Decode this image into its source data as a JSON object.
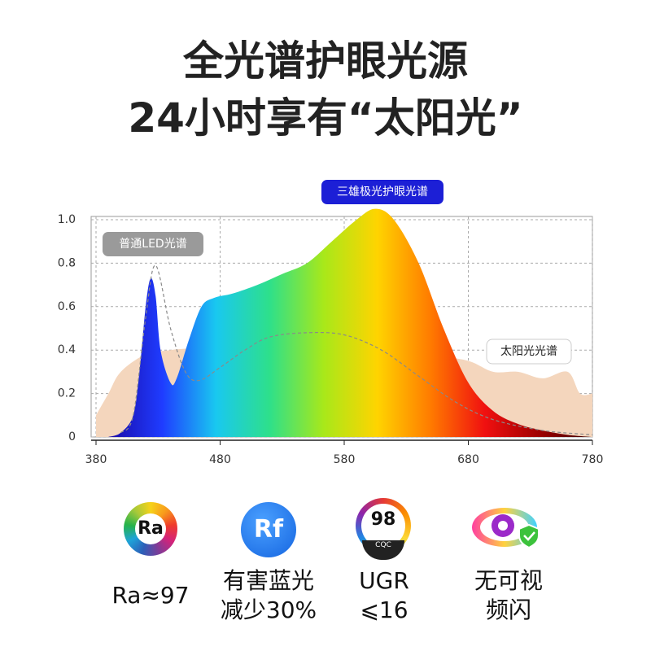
{
  "headline": [
    "全光谱护眼光源",
    "24小时享有“太阳光”"
  ],
  "chart_data": {
    "type": "area",
    "xlim": [
      380,
      780
    ],
    "xticks": [
      380,
      480,
      580,
      680,
      780
    ],
    "ylim": [
      0,
      1
    ],
    "yticks": [
      0,
      0.2,
      0.4,
      0.6,
      0.8,
      {
        "value": 1,
        "label": "1.0"
      }
    ],
    "grid": true,
    "series": [
      {
        "name": "太阳光光谱",
        "color": "#f4d6bd",
        "x": [
          380,
          390,
          400,
          420,
          440,
          460,
          500,
          550,
          600,
          650,
          680,
          700,
          720,
          740,
          760,
          770,
          780
        ],
        "values": [
          0.1,
          0.2,
          0.3,
          0.38,
          0.4,
          0.41,
          0.43,
          0.45,
          0.44,
          0.38,
          0.35,
          0.3,
          0.3,
          0.27,
          0.3,
          0.2,
          0.2
        ]
      },
      {
        "name": "三雄极光护眼光谱",
        "colors": [
          "#1a0aa8",
          "#1f3cff",
          "#19c8f0",
          "#2ee08a",
          "#a8e81a",
          "#ffd400",
          "#ff7a00",
          "#f01010",
          "#a00000",
          "#3a0000"
        ],
        "x": [
          390,
          400,
          410,
          415,
          420,
          424,
          428,
          432,
          440,
          445,
          455,
          465,
          475,
          490,
          510,
          530,
          550,
          570,
          590,
          605,
          620,
          640,
          660,
          680,
          700,
          720,
          740,
          760,
          780
        ],
        "values": [
          0,
          0.02,
          0.1,
          0.3,
          0.6,
          0.73,
          0.65,
          0.4,
          0.25,
          0.27,
          0.45,
          0.6,
          0.64,
          0.66,
          0.7,
          0.75,
          0.8,
          0.9,
          1.0,
          1.05,
          1.0,
          0.8,
          0.5,
          0.25,
          0.12,
          0.06,
          0.03,
          0.01,
          0
        ]
      },
      {
        "name": "普通LED光谱",
        "color": "#8a8a8a",
        "dashed": true,
        "x": [
          400,
          410,
          420,
          428,
          440,
          452,
          463,
          480,
          500,
          520,
          550,
          580,
          610,
          640,
          670,
          700,
          740,
          780
        ],
        "values": [
          0.02,
          0.1,
          0.55,
          0.79,
          0.5,
          0.3,
          0.26,
          0.32,
          0.4,
          0.46,
          0.48,
          0.47,
          0.4,
          0.28,
          0.16,
          0.08,
          0.03,
          0.01
        ]
      }
    ]
  },
  "features": [
    {
      "icon": "Ra",
      "lines": [
        "Ra≈97"
      ]
    },
    {
      "icon": "Rf",
      "lines": [
        "有害蓝光",
        "减少30%"
      ]
    },
    {
      "icon": "98",
      "badge": "CQC",
      "lines": [
        "UGR",
        "⩽16"
      ]
    },
    {
      "lines": [
        "无可视",
        "频闪"
      ]
    }
  ]
}
